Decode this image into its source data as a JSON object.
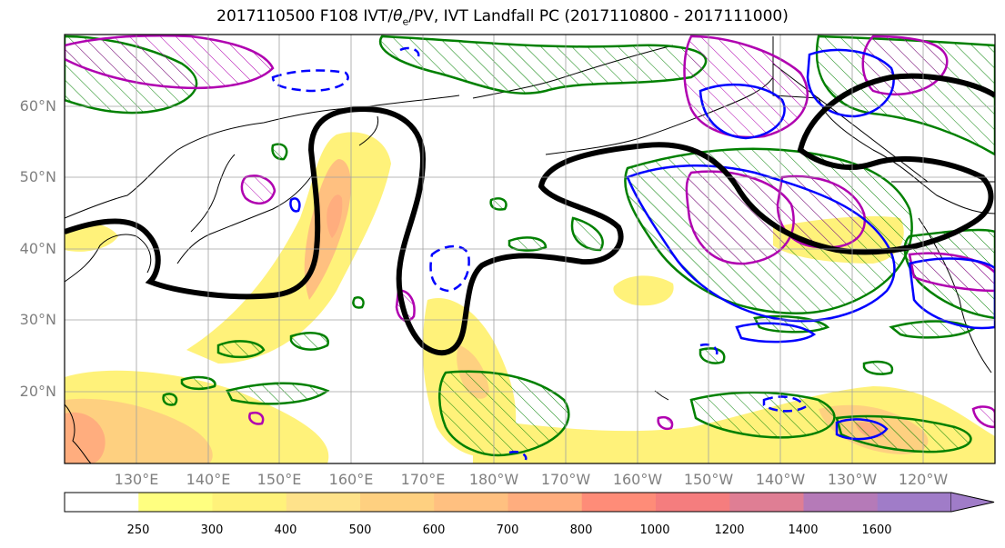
{
  "title": {
    "prefix": "2017110500 F108 IVT/",
    "theta": "θ",
    "sub": "e",
    "suffix": "/PV, IVT Landfall PC (2017110800 - 2017111000)"
  },
  "lat_labels": [
    "60°N",
    "50°N",
    "40°N",
    "30°N",
    "20°N"
  ],
  "lon_labels": [
    "130°E",
    "140°E",
    "150°E",
    "160°E",
    "170°E",
    "180°W",
    "170°W",
    "160°W",
    "150°W",
    "140°W",
    "130°W",
    "120°W"
  ],
  "colorbar": {
    "ticks": [
      "250",
      "300",
      "400",
      "500",
      "600",
      "700",
      "800",
      "1000",
      "1200",
      "1400",
      "1600"
    ],
    "colors": [
      "#ffffff",
      "#ffff80",
      "#fff27a",
      "#fee28a",
      "#fed080",
      "#ffc080",
      "#ffad7e",
      "#fe8c78",
      "#f57d7e",
      "#df7e94",
      "#b57ab8",
      "#a07cc8"
    ]
  },
  "contour_colors": {
    "ivt_shading": "#ffd966",
    "theta_e": "#000000",
    "pv_green": "#008000",
    "pv_blue": "#0000ff",
    "pv_magenta": "#b000b0"
  }
}
